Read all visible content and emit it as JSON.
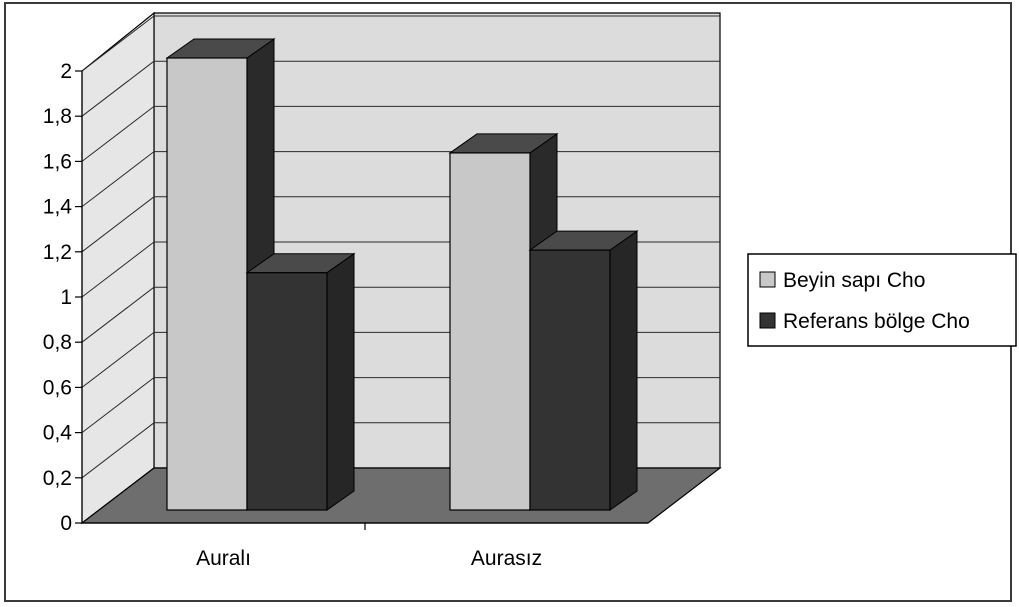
{
  "chart_data": {
    "type": "bar",
    "categories": [
      "Auralı",
      "Aurasız"
    ],
    "series": [
      {
        "name": "Beyin sapı Cho",
        "values": [
          2.0,
          1.58
        ]
      },
      {
        "name": "Referans bölge Cho",
        "values": [
          1.05,
          1.15
        ]
      }
    ],
    "yticks": [
      "0",
      "0,2",
      "0,4",
      "0,6",
      "0,8",
      "1",
      "1,2",
      "1,4",
      "1,6",
      "1,8",
      "2"
    ],
    "ylim": [
      0,
      2
    ],
    "grid": true,
    "legend_position": "right",
    "title": "",
    "xlabel": "",
    "ylabel": "",
    "three_d": true
  },
  "colors": {
    "series_front": [
      "#c8c8c8",
      "#333333"
    ],
    "series_top": [
      "#4a4a4a",
      "#4a4a4a"
    ],
    "series_side": [
      "#2a2a2a",
      "#262626"
    ],
    "back_wall": "#dcdcdc",
    "side_wall": "#e6e6e6",
    "floor": "#6e6e6e",
    "grid": "#2a2a2a"
  }
}
